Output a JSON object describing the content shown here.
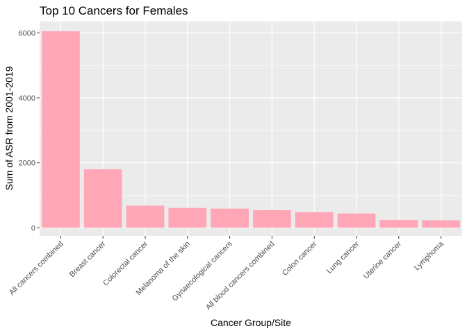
{
  "chart_data": {
    "type": "bar",
    "title": "Top 10 Cancers for Females",
    "xlabel": "Cancer Group/Site",
    "ylabel": "Sum of ASR from 2001-2019",
    "categories": [
      "All cancers combined",
      "Breast cancer",
      "Colorectal cancer",
      "Melanoma of the skin",
      "Gynaecological cancers",
      "All blood cancers combined",
      "Colon cancer",
      "Lung cancer",
      "Uterine cancer",
      "Lymphoma"
    ],
    "values": [
      6050,
      1800,
      680,
      610,
      590,
      540,
      480,
      440,
      240,
      230
    ],
    "ylim": [
      -250,
      6350
    ],
    "yticks": [
      0,
      2000,
      4000,
      6000
    ],
    "grid": true,
    "bar_color": "#ffa7b6",
    "panel_color": "#ebebeb",
    "grid_color": "#ffffff"
  }
}
